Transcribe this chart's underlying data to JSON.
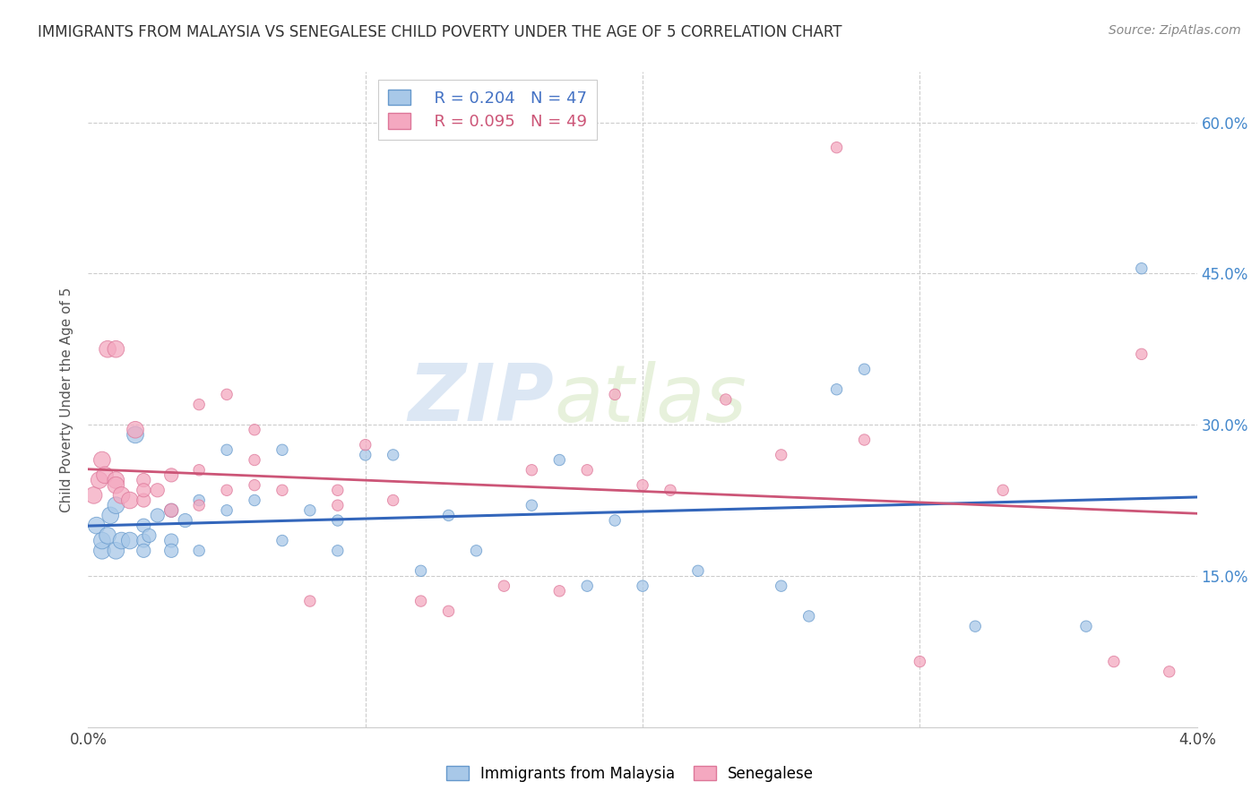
{
  "title": "IMMIGRANTS FROM MALAYSIA VS SENEGALESE CHILD POVERTY UNDER THE AGE OF 5 CORRELATION CHART",
  "source": "Source: ZipAtlas.com",
  "ylabel": "Child Poverty Under the Age of 5",
  "xlim": [
    0.0,
    0.04
  ],
  "ylim": [
    0.0,
    0.65
  ],
  "xticks": [
    0.0,
    0.01,
    0.02,
    0.03,
    0.04
  ],
  "xticklabels": [
    "0.0%",
    "",
    "",
    "",
    "4.0%"
  ],
  "yticks": [
    0.0,
    0.15,
    0.3,
    0.45,
    0.6
  ],
  "yticklabels_right": [
    "",
    "15.0%",
    "30.0%",
    "45.0%",
    "60.0%"
  ],
  "legend_labels": [
    "Immigrants from Malaysia",
    "Senegalese"
  ],
  "blue_color": "#a8c8e8",
  "pink_color": "#f4a8c0",
  "blue_edge_color": "#6699cc",
  "pink_edge_color": "#dd7799",
  "blue_line_color": "#3366bb",
  "pink_line_color": "#cc5577",
  "legend_r1": "R = 0.204",
  "legend_n1": "N = 47",
  "legend_r2": "R = 0.095",
  "legend_n2": "N = 49",
  "watermark_zip": "ZIP",
  "watermark_atlas": "atlas",
  "background_color": "#ffffff",
  "grid_color": "#cccccc",
  "blue_scatter_x": [
    0.0003,
    0.0005,
    0.0005,
    0.0007,
    0.0008,
    0.001,
    0.001,
    0.0012,
    0.0015,
    0.0017,
    0.002,
    0.002,
    0.002,
    0.0022,
    0.0025,
    0.003,
    0.003,
    0.003,
    0.0035,
    0.004,
    0.004,
    0.005,
    0.005,
    0.006,
    0.007,
    0.007,
    0.008,
    0.009,
    0.009,
    0.01,
    0.011,
    0.012,
    0.013,
    0.014,
    0.016,
    0.017,
    0.018,
    0.019,
    0.02,
    0.022,
    0.025,
    0.026,
    0.027,
    0.028,
    0.032,
    0.036,
    0.038
  ],
  "blue_scatter_y": [
    0.2,
    0.175,
    0.185,
    0.19,
    0.21,
    0.175,
    0.22,
    0.185,
    0.185,
    0.29,
    0.185,
    0.2,
    0.175,
    0.19,
    0.21,
    0.185,
    0.215,
    0.175,
    0.205,
    0.225,
    0.175,
    0.215,
    0.275,
    0.225,
    0.185,
    0.275,
    0.215,
    0.205,
    0.175,
    0.27,
    0.27,
    0.155,
    0.21,
    0.175,
    0.22,
    0.265,
    0.14,
    0.205,
    0.14,
    0.155,
    0.14,
    0.11,
    0.335,
    0.355,
    0.1,
    0.1,
    0.455
  ],
  "pink_scatter_x": [
    0.0002,
    0.0004,
    0.0005,
    0.0006,
    0.0007,
    0.001,
    0.001,
    0.001,
    0.0012,
    0.0015,
    0.0017,
    0.002,
    0.002,
    0.002,
    0.0025,
    0.003,
    0.003,
    0.004,
    0.004,
    0.005,
    0.005,
    0.006,
    0.006,
    0.007,
    0.008,
    0.009,
    0.01,
    0.011,
    0.012,
    0.013,
    0.015,
    0.016,
    0.017,
    0.018,
    0.019,
    0.02,
    0.021,
    0.023,
    0.025,
    0.027,
    0.028,
    0.03,
    0.033,
    0.037,
    0.038,
    0.039,
    0.004,
    0.006,
    0.009
  ],
  "pink_scatter_y": [
    0.23,
    0.245,
    0.265,
    0.25,
    0.375,
    0.375,
    0.245,
    0.24,
    0.23,
    0.225,
    0.295,
    0.225,
    0.245,
    0.235,
    0.235,
    0.215,
    0.25,
    0.22,
    0.255,
    0.235,
    0.33,
    0.295,
    0.24,
    0.235,
    0.125,
    0.235,
    0.28,
    0.225,
    0.125,
    0.115,
    0.14,
    0.255,
    0.135,
    0.255,
    0.33,
    0.24,
    0.235,
    0.325,
    0.27,
    0.575,
    0.285,
    0.065,
    0.235,
    0.065,
    0.37,
    0.055,
    0.32,
    0.265,
    0.22
  ]
}
